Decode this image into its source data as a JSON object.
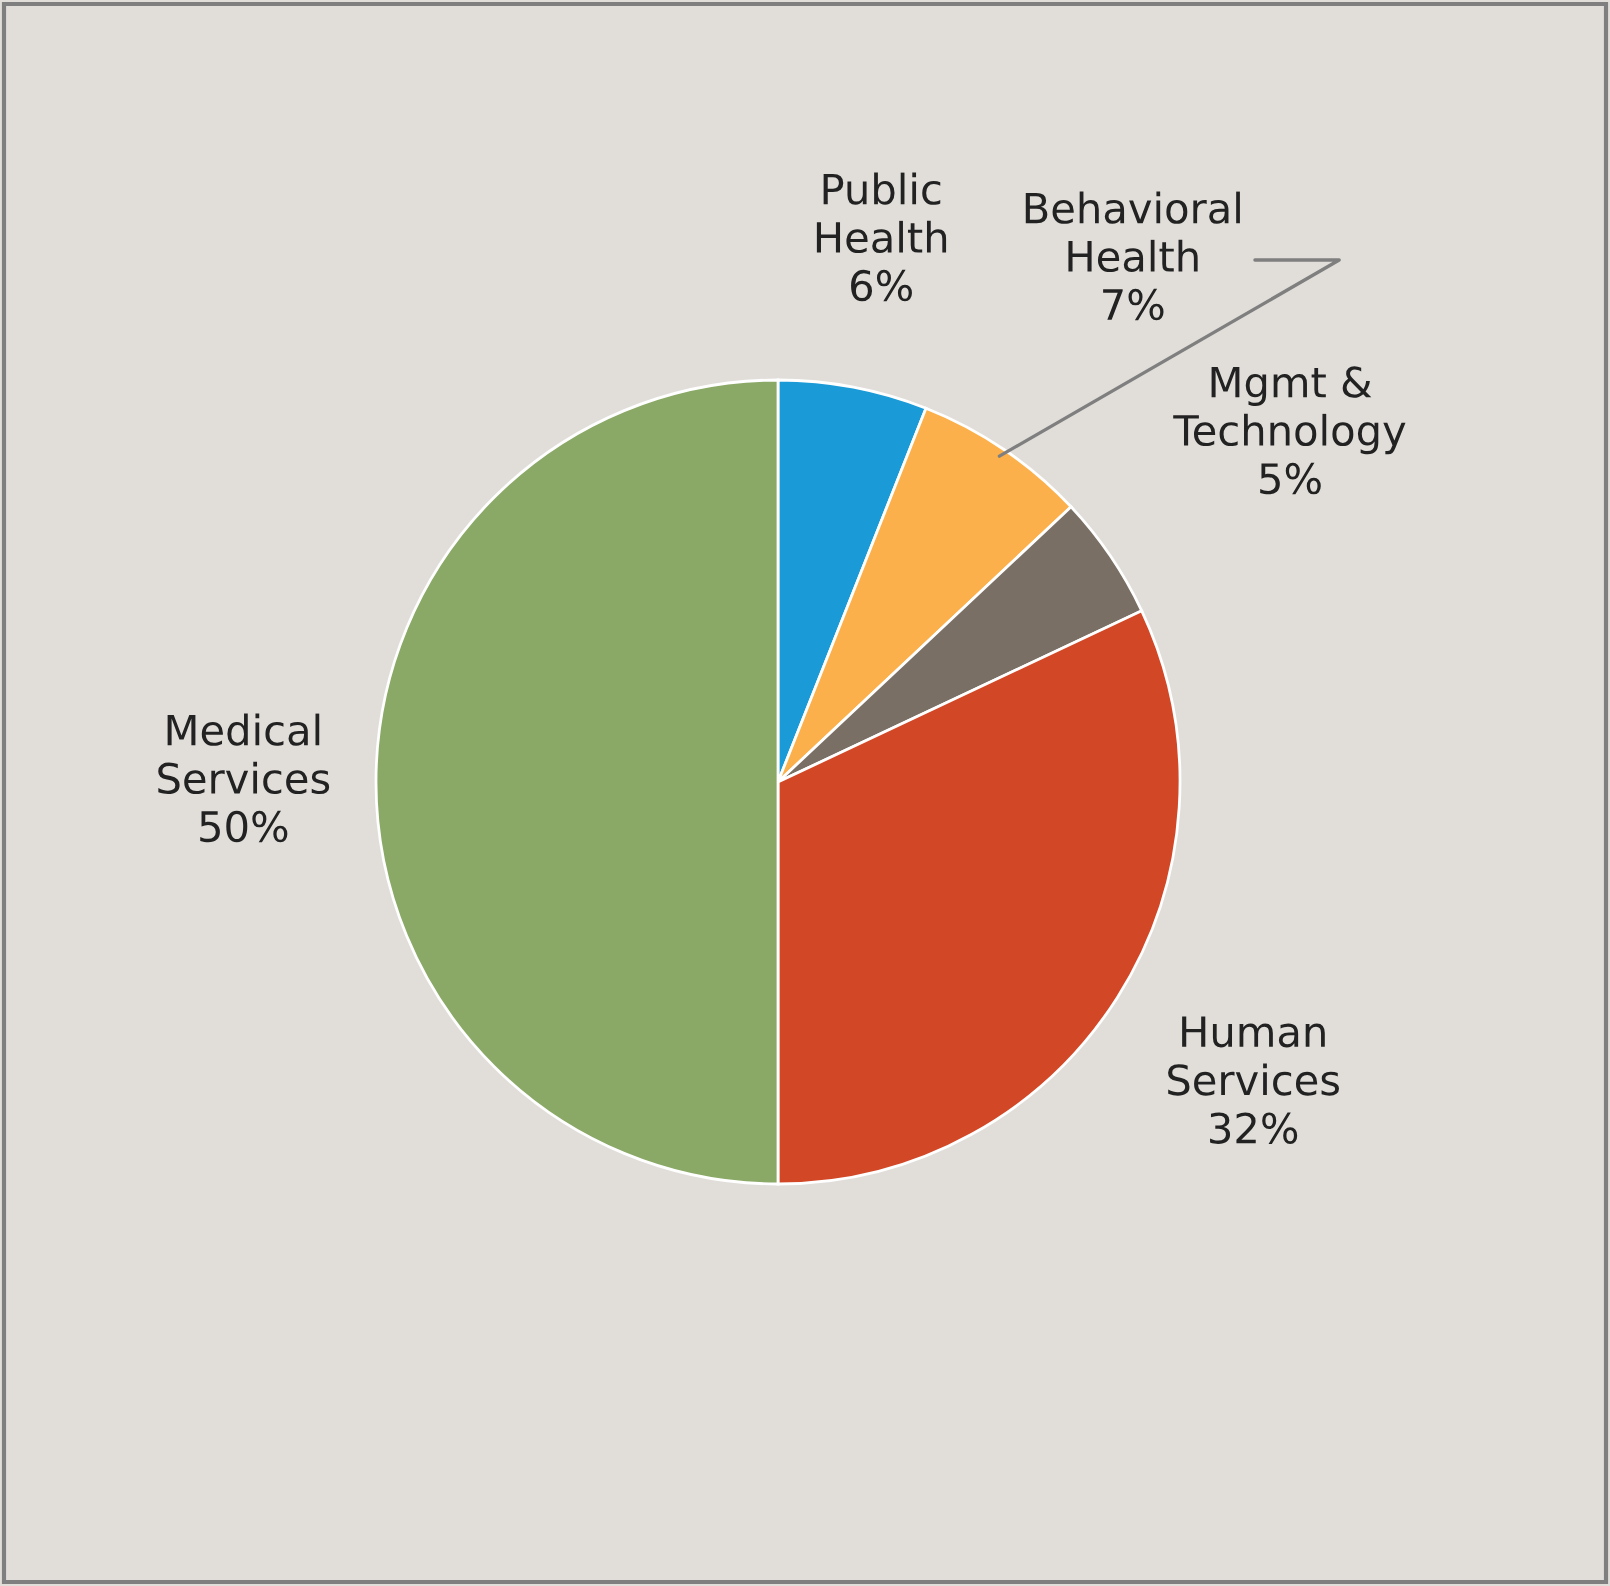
{
  "chart_data": {
    "type": "pie",
    "categories": [
      "Public Health",
      "Behavioral Health",
      "Mgmt & Technology",
      "Human Services",
      "Medical Services"
    ],
    "values": [
      6,
      7,
      5,
      32,
      50
    ],
    "value_labels": [
      "6%",
      "7%",
      "5%",
      "32%",
      "50%"
    ],
    "colors": [
      "#1a9ad6",
      "#fbb04c",
      "#7a6f65",
      "#d24726",
      "#8aa866"
    ],
    "legend": false
  }
}
